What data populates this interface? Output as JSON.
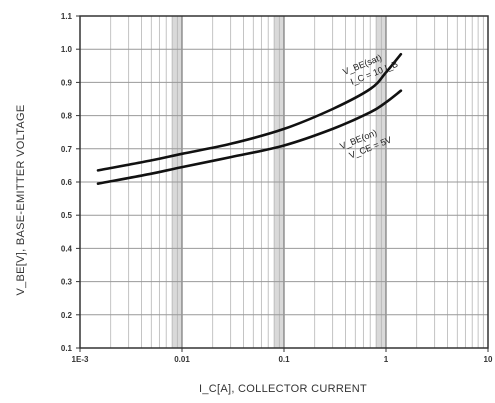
{
  "chart_data": {
    "type": "line",
    "xlabel": "I_C[A], COLLECTOR CURRENT",
    "ylabel": "V_BE[V], BASE-EMITTER VOLTAGE",
    "x_scale": "log",
    "xlim": [
      0.001,
      10
    ],
    "ylim": [
      0.1,
      1.1
    ],
    "grid": true,
    "x_tick_labels": [
      "1E-3",
      "0.01",
      "0.1",
      "1",
      "10"
    ],
    "y_tick_labels": [
      "0.1",
      "0.2",
      "0.3",
      "0.4",
      "0.5",
      "0.6",
      "0.7",
      "0.8",
      "0.9",
      "1.0",
      "1.1"
    ],
    "series": [
      {
        "name": "V_BE(sat)",
        "annotation_lines": [
          "V_BE(sat)",
          "I_C = 10 I_B"
        ],
        "x": [
          0.0015,
          0.005,
          0.01,
          0.03,
          0.1,
          0.3,
          0.7,
          1.0,
          1.4
        ],
        "y": [
          0.635,
          0.665,
          0.685,
          0.715,
          0.76,
          0.82,
          0.88,
          0.93,
          0.985
        ]
      },
      {
        "name": "V_BE(on)",
        "annotation_lines": [
          "V_BE(on)",
          "V_CE = 5V"
        ],
        "x": [
          0.0015,
          0.005,
          0.01,
          0.03,
          0.1,
          0.3,
          0.7,
          1.0,
          1.4
        ],
        "y": [
          0.595,
          0.625,
          0.645,
          0.675,
          0.71,
          0.76,
          0.81,
          0.84,
          0.875
        ]
      }
    ]
  }
}
